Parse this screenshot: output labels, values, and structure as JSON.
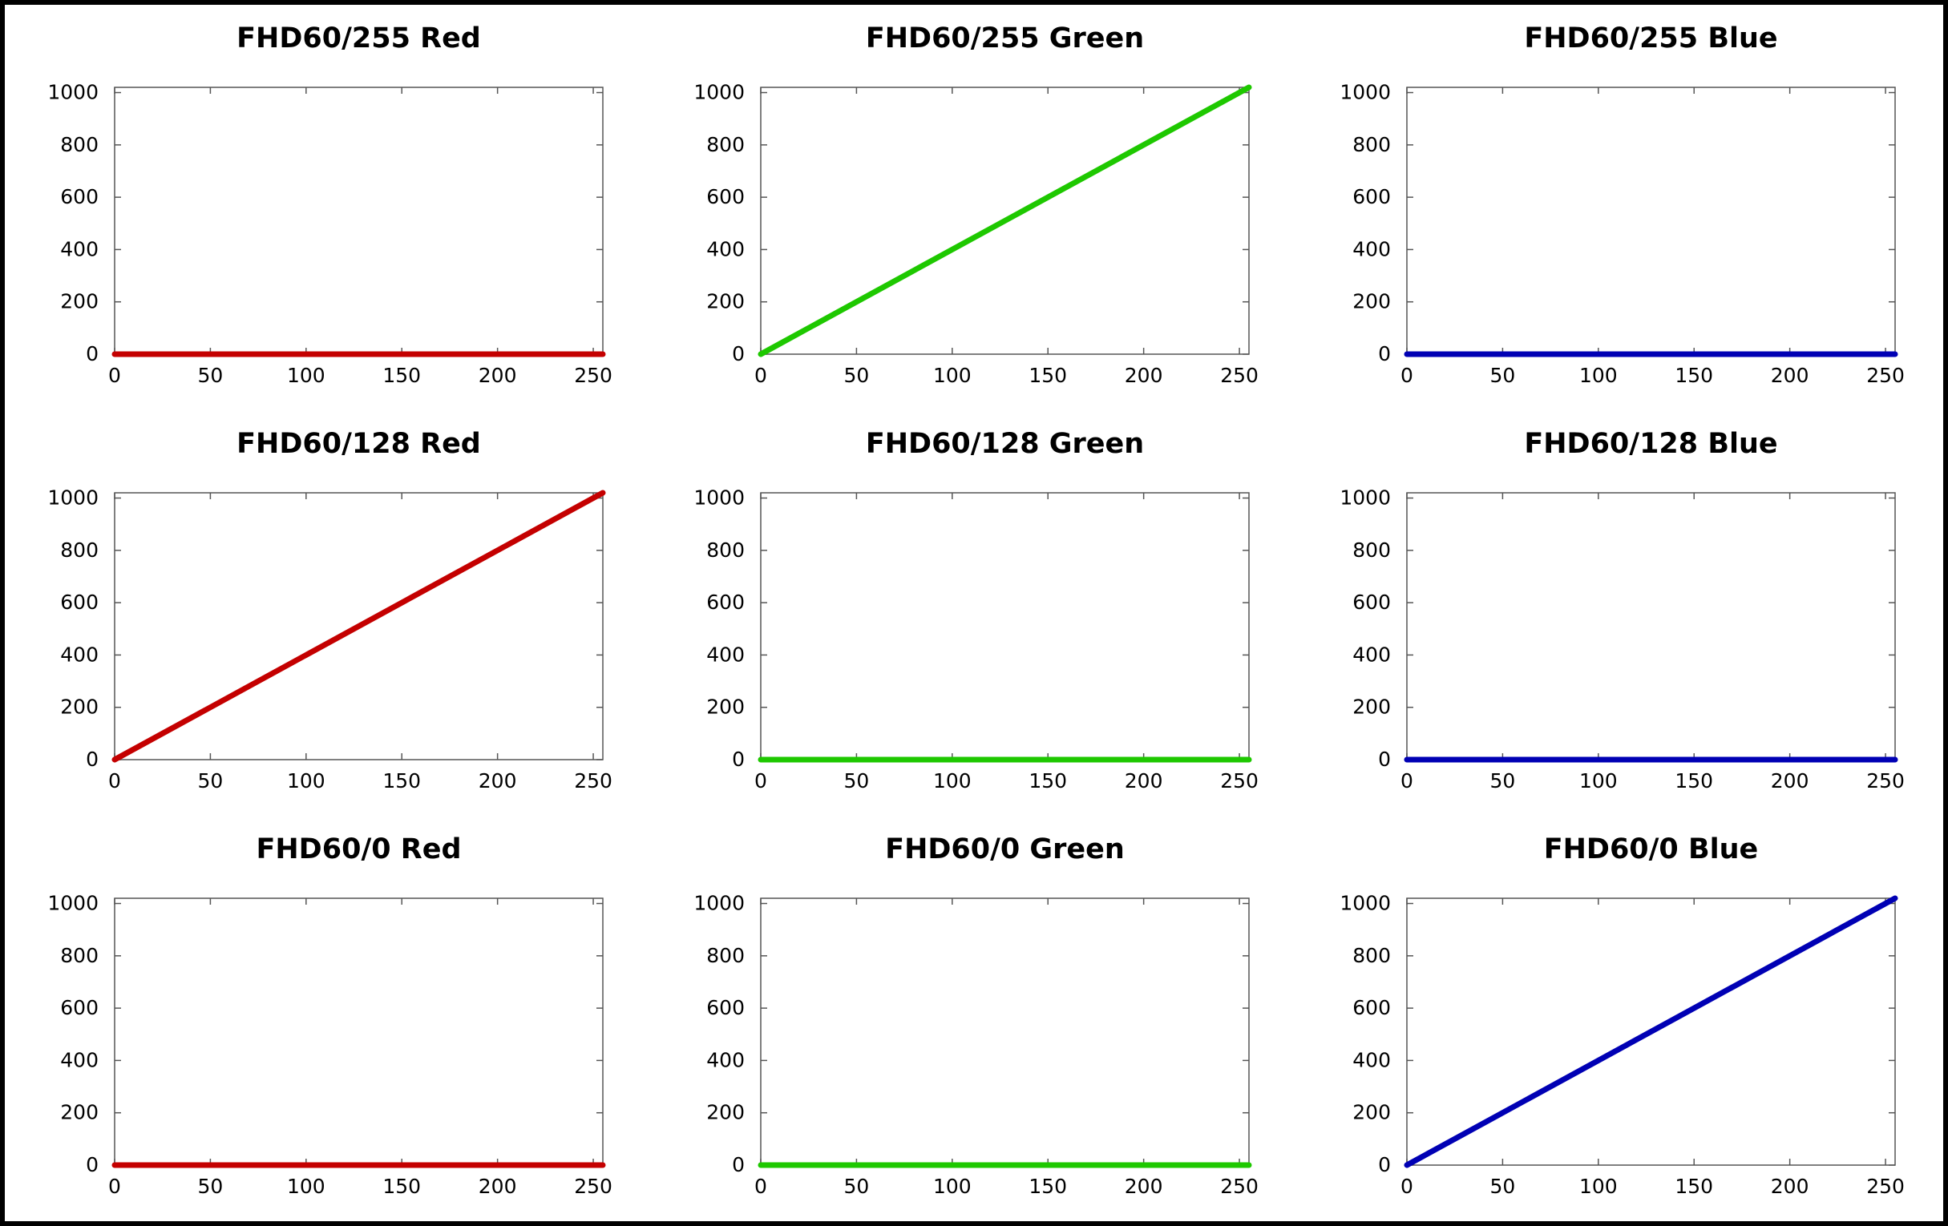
{
  "chart_data": [
    {
      "type": "line",
      "title": "FHD60/255 Red",
      "color": "#c40000",
      "x": [
        0,
        255
      ],
      "y": [
        0,
        0
      ],
      "xlim": [
        0,
        255
      ],
      "ylim": [
        0,
        1020
      ],
      "xticks": [
        0,
        50,
        100,
        150,
        200,
        250
      ],
      "yticks": [
        0,
        200,
        400,
        600,
        800,
        1000
      ]
    },
    {
      "type": "line",
      "title": "FHD60/255 Green",
      "color": "#1ec800",
      "x": [
        0,
        255
      ],
      "y": [
        0,
        1020
      ],
      "xlim": [
        0,
        255
      ],
      "ylim": [
        0,
        1020
      ],
      "xticks": [
        0,
        50,
        100,
        150,
        200,
        250
      ],
      "yticks": [
        0,
        200,
        400,
        600,
        800,
        1000
      ]
    },
    {
      "type": "line",
      "title": "FHD60/255 Blue",
      "color": "#0000b4",
      "x": [
        0,
        255
      ],
      "y": [
        0,
        0
      ],
      "xlim": [
        0,
        255
      ],
      "ylim": [
        0,
        1020
      ],
      "xticks": [
        0,
        50,
        100,
        150,
        200,
        250
      ],
      "yticks": [
        0,
        200,
        400,
        600,
        800,
        1000
      ]
    },
    {
      "type": "line",
      "title": "FHD60/128 Red",
      "color": "#c40000",
      "x": [
        0,
        255
      ],
      "y": [
        0,
        1020
      ],
      "xlim": [
        0,
        255
      ],
      "ylim": [
        0,
        1020
      ],
      "xticks": [
        0,
        50,
        100,
        150,
        200,
        250
      ],
      "yticks": [
        0,
        200,
        400,
        600,
        800,
        1000
      ]
    },
    {
      "type": "line",
      "title": "FHD60/128 Green",
      "color": "#1ec800",
      "x": [
        0,
        255
      ],
      "y": [
        0,
        0
      ],
      "xlim": [
        0,
        255
      ],
      "ylim": [
        0,
        1020
      ],
      "xticks": [
        0,
        50,
        100,
        150,
        200,
        250
      ],
      "yticks": [
        0,
        200,
        400,
        600,
        800,
        1000
      ]
    },
    {
      "type": "line",
      "title": "FHD60/128 Blue",
      "color": "#0000b4",
      "x": [
        0,
        255
      ],
      "y": [
        0,
        0
      ],
      "xlim": [
        0,
        255
      ],
      "ylim": [
        0,
        1020
      ],
      "xticks": [
        0,
        50,
        100,
        150,
        200,
        250
      ],
      "yticks": [
        0,
        200,
        400,
        600,
        800,
        1000
      ]
    },
    {
      "type": "line",
      "title": "FHD60/0 Red",
      "color": "#c40000",
      "x": [
        0,
        255
      ],
      "y": [
        0,
        0
      ],
      "xlim": [
        0,
        255
      ],
      "ylim": [
        0,
        1020
      ],
      "xticks": [
        0,
        50,
        100,
        150,
        200,
        250
      ],
      "yticks": [
        0,
        200,
        400,
        600,
        800,
        1000
      ]
    },
    {
      "type": "line",
      "title": "FHD60/0 Green",
      "color": "#1ec800",
      "x": [
        0,
        255
      ],
      "y": [
        0,
        0
      ],
      "xlim": [
        0,
        255
      ],
      "ylim": [
        0,
        1020
      ],
      "xticks": [
        0,
        50,
        100,
        150,
        200,
        250
      ],
      "yticks": [
        0,
        200,
        400,
        600,
        800,
        1000
      ]
    },
    {
      "type": "line",
      "title": "FHD60/0 Blue",
      "color": "#0000b4",
      "x": [
        0,
        255
      ],
      "y": [
        0,
        1020
      ],
      "xlim": [
        0,
        255
      ],
      "ylim": [
        0,
        1020
      ],
      "xticks": [
        0,
        50,
        100,
        150,
        200,
        250
      ],
      "yticks": [
        0,
        200,
        400,
        600,
        800,
        1000
      ]
    }
  ]
}
